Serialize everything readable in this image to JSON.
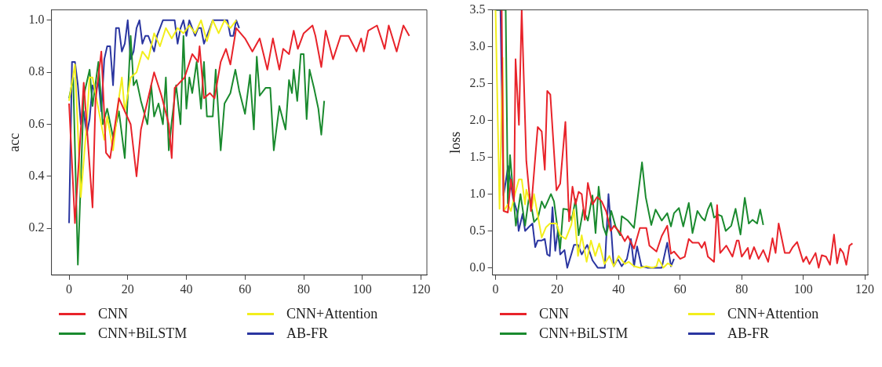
{
  "chart_data": [
    {
      "type": "line",
      "ylabel": "acc",
      "xlim": [
        -6,
        122
      ],
      "ylim": [
        0.02,
        1.04
      ],
      "xticks": [
        0,
        20,
        40,
        60,
        80,
        100,
        120
      ],
      "yticks": [
        0.2,
        0.4,
        0.6,
        0.8,
        {
          "value": 1,
          "label": "1.0"
        }
      ],
      "grid": false,
      "legend": "bottom",
      "marker": "none",
      "line_style": "solid",
      "series": [
        {
          "name": "CNN",
          "color": "#e8232a",
          "x": [
            0,
            2,
            5,
            8,
            9,
            11,
            12.6,
            14,
            17,
            21,
            23,
            24.5,
            29,
            31.5,
            34,
            35,
            36,
            39.4,
            42,
            44,
            44.5,
            46,
            48,
            49.6,
            51.7,
            53.5,
            55,
            57,
            60,
            62.5,
            65,
            67.6,
            69.5,
            71.7,
            73,
            75,
            76.6,
            78,
            80,
            83,
            84,
            86,
            87.5,
            90,
            92.6,
            95.3,
            98,
            99.6,
            100.5,
            102,
            105,
            107.6,
            109,
            111.7,
            114,
            116
          ],
          "values": [
            0.68,
            0.22,
            0.76,
            0.28,
            0.69,
            0.88,
            0.49,
            0.47,
            0.7,
            0.6,
            0.4,
            0.58,
            0.8,
            0.71,
            0.6,
            0.47,
            0.74,
            0.78,
            0.87,
            0.84,
            0.9,
            0.7,
            0.72,
            0.7,
            0.84,
            0.89,
            0.83,
            0.97,
            0.93,
            0.88,
            0.93,
            0.81,
            0.93,
            0.81,
            0.89,
            0.87,
            0.96,
            0.89,
            0.95,
            0.98,
            0.94,
            0.82,
            0.96,
            0.85,
            0.94,
            0.94,
            0.88,
            0.93,
            0.88,
            0.96,
            0.98,
            0.89,
            0.98,
            0.88,
            0.98,
            0.94
          ]
        },
        {
          "name": "CNN+Attention",
          "color": "#f2ee1c",
          "x": [
            0,
            2,
            4,
            6,
            7,
            8,
            10,
            12,
            13,
            15,
            17,
            18,
            19,
            21,
            23,
            25,
            27,
            29,
            31,
            33,
            35,
            37,
            39,
            41,
            43,
            45,
            47,
            49,
            51,
            53,
            55,
            57
          ],
          "values": [
            0.69,
            0.83,
            0.32,
            0.6,
            0.78,
            0.78,
            0.66,
            0.54,
            0.63,
            0.5,
            0.7,
            0.78,
            0.65,
            0.78,
            0.8,
            0.88,
            0.85,
            0.95,
            0.9,
            0.97,
            0.93,
            0.97,
            0.95,
            0.98,
            0.95,
            1.0,
            0.92,
            1.0,
            0.95,
            1.0,
            0.97,
            1.0
          ]
        },
        {
          "name": "CNN+BiLSTM",
          "color": "#1a8a2e",
          "x": [
            0,
            1.4,
            3,
            5,
            7,
            8,
            10,
            11.5,
            13,
            15,
            17,
            19,
            21,
            22,
            23,
            24.5,
            26.7,
            28,
            29,
            30.5,
            32,
            33,
            34,
            35,
            36.5,
            38,
            39,
            40,
            41,
            42,
            43.5,
            45,
            46,
            47,
            49,
            50,
            51.7,
            53,
            55,
            56.7,
            58,
            60,
            61.7,
            63,
            64,
            65,
            67,
            68.6,
            69.8,
            71.7,
            73.8,
            75,
            76,
            76.6,
            77.8,
            79,
            80,
            81,
            82,
            83.5,
            85,
            86,
            87
          ],
          "values": [
            0.7,
            0.78,
            0.06,
            0.71,
            0.81,
            0.67,
            0.84,
            0.6,
            0.66,
            0.55,
            0.65,
            0.47,
            0.94,
            0.75,
            0.77,
            0.69,
            0.6,
            0.75,
            0.63,
            0.68,
            0.6,
            0.78,
            0.5,
            0.61,
            0.75,
            0.6,
            0.94,
            0.66,
            0.78,
            0.72,
            0.84,
            0.66,
            0.84,
            0.63,
            0.63,
            0.81,
            0.5,
            0.68,
            0.72,
            0.81,
            0.73,
            0.64,
            0.79,
            0.58,
            0.86,
            0.71,
            0.74,
            0.74,
            0.5,
            0.67,
            0.58,
            0.77,
            0.72,
            0.81,
            0.69,
            0.87,
            0.87,
            0.62,
            0.81,
            0.74,
            0.66,
            0.56,
            0.69
          ]
        },
        {
          "name": "AB-FR",
          "color": "#2a35a0",
          "x": [
            0,
            1,
            2,
            3,
            4,
            5,
            6,
            7,
            8,
            9,
            10,
            11,
            12,
            13,
            14,
            15,
            16,
            17,
            18,
            19,
            20,
            21,
            22,
            23,
            24,
            25,
            26,
            27,
            28,
            29,
            30,
            31,
            32,
            36,
            37,
            38,
            39,
            40,
            41,
            42,
            43,
            44,
            45,
            46,
            47,
            48,
            49,
            54,
            55,
            56,
            57,
            58
          ],
          "values": [
            0.22,
            0.84,
            0.84,
            0.75,
            0.6,
            0.65,
            0.56,
            0.62,
            0.75,
            0.72,
            0.77,
            0.65,
            0.85,
            0.9,
            0.9,
            0.75,
            0.97,
            0.97,
            0.88,
            0.91,
            1.0,
            0.85,
            0.88,
            0.97,
            1.0,
            0.91,
            0.94,
            0.94,
            0.91,
            0.88,
            0.94,
            0.97,
            1.0,
            1.0,
            0.91,
            0.97,
            1.0,
            0.94,
            1.0,
            0.97,
            0.94,
            0.97,
            0.97,
            0.91,
            0.94,
            0.97,
            1.0,
            1.0,
            0.94,
            0.94,
            1.0,
            0.97
          ]
        }
      ]
    },
    {
      "type": "line",
      "ylabel": "loss",
      "xlim": [
        -1,
        121
      ],
      "ylim": [
        -0.1,
        3.5
      ],
      "xticks": [
        0,
        20,
        40,
        60,
        80,
        100,
        120
      ],
      "yticks": [
        {
          "value": 0,
          "label": "0.0"
        },
        0.5,
        {
          "value": 1,
          "label": "1.0"
        },
        1.5,
        {
          "value": 2,
          "label": "2.0"
        },
        2.5,
        {
          "value": 3,
          "label": "3.0"
        },
        3.5
      ],
      "grid": false,
      "legend": "bottom",
      "marker": "none",
      "line_style": "solid",
      "series": [
        {
          "name": "CNN",
          "color": "#e8232a",
          "x": [
            2,
            2.6,
            4,
            5,
            6,
            6.5,
            7.6,
            8.5,
            10,
            11.5,
            13.7,
            15,
            16,
            16.8,
            17.8,
            19.8,
            21,
            22.7,
            23.9,
            25,
            26,
            27,
            28,
            29,
            30,
            31.5,
            33,
            34.5,
            36,
            37.4,
            38.5,
            40.6,
            42,
            43,
            45,
            46.9,
            49,
            50,
            52.3,
            54,
            55.8,
            57,
            58,
            60,
            61.5,
            62.8,
            64,
            66,
            67,
            68,
            69,
            71,
            72,
            73,
            75,
            77,
            78.4,
            79,
            80,
            82,
            82.6,
            84,
            85.5,
            87,
            88.6,
            90,
            91,
            92,
            94,
            95.5,
            96.6,
            98,
            100,
            101,
            102,
            104,
            105,
            106,
            107.4,
            108.7,
            110,
            111,
            112,
            113,
            114,
            115,
            116
          ],
          "values": [
            3.5,
            0.77,
            0.75,
            1.2,
            0.9,
            2.83,
            1.94,
            3.5,
            1.45,
            0.77,
            1.91,
            1.85,
            1.33,
            2.4,
            2.35,
            1.05,
            1.14,
            1.98,
            0.63,
            1.1,
            0.86,
            1.03,
            1.0,
            0.65,
            1.15,
            0.86,
            0.96,
            0.9,
            0.76,
            0.5,
            0.57,
            0.47,
            0.36,
            0.43,
            0.26,
            0.54,
            0.54,
            0.3,
            0.22,
            0.43,
            0.57,
            0.19,
            0.22,
            0.12,
            0.15,
            0.39,
            0.34,
            0.34,
            0.27,
            0.35,
            0.15,
            0.08,
            0.85,
            0.2,
            0.3,
            0.15,
            0.37,
            0.37,
            0.15,
            0.27,
            0.12,
            0.28,
            0.12,
            0.24,
            0.08,
            0.4,
            0.2,
            0.6,
            0.2,
            0.2,
            0.28,
            0.35,
            0.08,
            0.15,
            0.05,
            0.2,
            0.0,
            0.17,
            0.15,
            0.04,
            0.45,
            0.06,
            0.26,
            0.2,
            0.04,
            0.3,
            0.33
          ]
        },
        {
          "name": "CNN+Attention",
          "color": "#f2ee1c",
          "x": [
            0,
            1.3,
            2.3,
            2.7,
            4,
            5,
            6.3,
            7.6,
            8.5,
            9.6,
            10,
            11.8,
            12.5,
            15,
            16.4,
            17.7,
            19.8,
            21,
            22.8,
            24.6,
            25.5,
            26.8,
            28,
            29.6,
            31,
            32.4,
            33.7,
            35.4,
            37,
            38.4,
            40,
            42,
            43.3,
            45,
            47,
            49,
            51,
            52.3,
            53,
            54.5,
            56,
            57.4
          ],
          "values": [
            3.5,
            0.8,
            2.85,
            0.77,
            0.86,
            0.77,
            1.0,
            1.2,
            1.2,
            0.86,
            1.06,
            0.8,
            1.0,
            0.41,
            0.55,
            0.6,
            0.6,
            0.44,
            0.39,
            0.58,
            0.79,
            0.16,
            0.44,
            0.08,
            0.37,
            0.16,
            0.33,
            0.05,
            0.16,
            0.02,
            0.16,
            0.05,
            0.08,
            0.02,
            0.0,
            0.02,
            0.0,
            0.02,
            0.12,
            0.0,
            0.06,
            0.02
          ]
        },
        {
          "name": "CNN+BiLSTM",
          "color": "#1a8a2e",
          "x": [
            0,
            3.3,
            4,
            4.7,
            6.2,
            6.6,
            8.1,
            9.6,
            11,
            12.5,
            13.8,
            15,
            16,
            18,
            19,
            21,
            22,
            23.5,
            24.7,
            26,
            27,
            28.5,
            30,
            31.5,
            32.5,
            33.5,
            35,
            36,
            37.6,
            39,
            40.5,
            41,
            43,
            45,
            47.6,
            48.8,
            50.6,
            52,
            54,
            55.8,
            57,
            58,
            59.6,
            61,
            62.8,
            64,
            65.6,
            67,
            68,
            69,
            70,
            71,
            72.3,
            73.5,
            74.8,
            76.6,
            78,
            79.6,
            81,
            82.3,
            83.5,
            85,
            86,
            87
          ],
          "values": [
            3.5,
            3.5,
            0.85,
            1.53,
            0.77,
            0.57,
            1.0,
            0.57,
            1.0,
            0.62,
            0.68,
            0.9,
            0.81,
            1.0,
            0.9,
            0.26,
            0.8,
            0.79,
            0.64,
            0.93,
            0.44,
            0.79,
            0.64,
            0.98,
            0.47,
            1.1,
            0.56,
            0.44,
            0.77,
            0.56,
            0.44,
            0.7,
            0.64,
            0.54,
            1.43,
            0.96,
            0.58,
            0.79,
            0.64,
            0.74,
            0.56,
            0.74,
            0.81,
            0.56,
            0.88,
            0.47,
            0.77,
            0.68,
            0.64,
            0.79,
            0.88,
            0.68,
            0.72,
            0.7,
            0.5,
            0.57,
            0.8,
            0.45,
            0.95,
            0.6,
            0.65,
            0.6,
            0.79,
            0.58
          ]
        },
        {
          "name": "AB-FR",
          "color": "#2a35a0",
          "x": [
            0,
            1.6,
            2.6,
            4.1,
            5.7,
            7,
            7.5,
            8.8,
            9.6,
            11,
            12,
            12.9,
            13.7,
            15,
            16,
            16.8,
            17.6,
            18.5,
            19.4,
            20.3,
            21,
            22.4,
            23.3,
            24.6,
            25.5,
            26.8,
            28,
            29.8,
            31.5,
            33.2,
            35.5,
            36.7,
            37.4,
            38.4,
            39.7,
            41,
            42.7,
            44,
            45,
            46,
            47.4,
            49.5,
            52,
            54,
            55.8,
            57,
            58
          ],
          "values": [
            3.5,
            3.5,
            0.98,
            1.38,
            0.94,
            0.76,
            0.5,
            0.73,
            0.5,
            0.56,
            0.6,
            0.28,
            0.37,
            0.37,
            0.39,
            0.18,
            0.16,
            0.82,
            0.23,
            0.52,
            0.18,
            0.24,
            0.0,
            0.18,
            0.31,
            0.31,
            0.18,
            0.31,
            0.1,
            0.0,
            0.0,
            1.0,
            0.62,
            0.02,
            0.12,
            0.02,
            0.12,
            0.39,
            0.02,
            0.29,
            0.02,
            0.0,
            0.0,
            0.0,
            0.34,
            0.02,
            0.12
          ]
        }
      ]
    }
  ]
}
